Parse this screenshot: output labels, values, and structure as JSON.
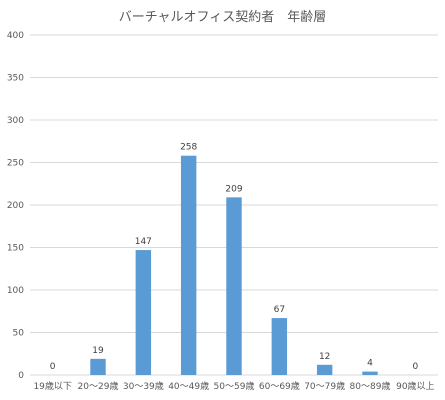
{
  "chart_data": {
    "type": "bar",
    "title": "バーチャルオフィス契約者　年齢層",
    "categories": [
      "19歳以下",
      "20～29歳",
      "30～39歳",
      "40～49歳",
      "50～59歳",
      "60～69歳",
      "70～79歳",
      "80～89歳",
      "90歳以上"
    ],
    "values": [
      0,
      19,
      147,
      258,
      209,
      67,
      12,
      4,
      0
    ],
    "ylim": [
      0,
      400
    ],
    "yticks": [
      0,
      50,
      100,
      150,
      200,
      250,
      300,
      350,
      400
    ],
    "grid": true,
    "legend": "none",
    "xlabel": "",
    "ylabel": "",
    "colors": {
      "bar": "#5b9bd5",
      "grid": "#d9d9d9",
      "text": "#595959"
    }
  }
}
